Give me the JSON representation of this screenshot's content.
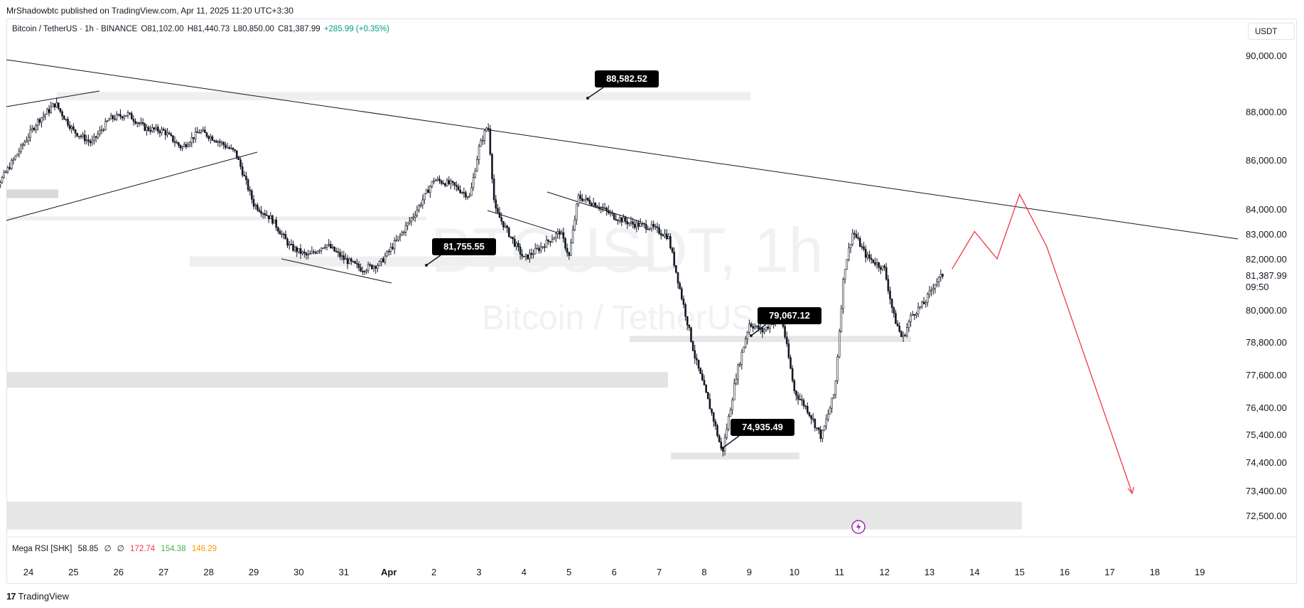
{
  "publisher": "MrShadowbtc published on TradingView.com, Apr 11, 2025 11:20 UTC+3:30",
  "legend": {
    "symbol": "Bitcoin / TetherUS · 1h · BINANCE",
    "open": "O81,102.00",
    "high": "H81,440.73",
    "low": "L80,850.00",
    "close": "C81,387.99",
    "change": "+285.99 (+0.35%)",
    "change_color": "#089981"
  },
  "currency": "USDT",
  "watermark": {
    "line1": "BTCUSDT, 1h",
    "line2": "Bitcoin / TetherUS"
  },
  "indicator": {
    "name": "Mega RSI [SHK]",
    "value1": "58.85",
    "na1": "∅",
    "na2": "∅",
    "value2": "172.74",
    "value3": "154.38",
    "value4": "146.29",
    "color2": "#f23645",
    "color3": "#4caf50",
    "color4": "#ff9800"
  },
  "footer": {
    "logo": "17",
    "brand": "TradingView"
  },
  "chart_data": {
    "type": "candlestick",
    "title": "",
    "symbol": "BTCUSDT",
    "interval": "1h",
    "exchange": "BINANCE",
    "y_ticks": [
      "90,000.00",
      "88,000.00",
      "86,000.00",
      "84,000.00",
      "83,000.00",
      "82,000.00",
      "80,000.00",
      "78,800.00",
      "77,600.00",
      "76,400.00",
      "75,400.00",
      "74,400.00",
      "73,400.00",
      "72,500.00"
    ],
    "y_tick_values": [
      90000,
      88000,
      86000,
      84000,
      83000,
      82000,
      80000,
      78800,
      77600,
      76400,
      75400,
      74400,
      73400,
      72500
    ],
    "x_ticks": [
      "24",
      "25",
      "26",
      "27",
      "28",
      "29",
      "30",
      "31",
      "Apr",
      "2",
      "3",
      "4",
      "5",
      "6",
      "7",
      "8",
      "9",
      "10",
      "11",
      "12",
      "13",
      "14",
      "15",
      "16",
      "17",
      "18",
      "19"
    ],
    "last_price": "81,387.99",
    "countdown": "09:50",
    "approx_path": [
      {
        "day": 23.0,
        "price": 84500
      },
      {
        "day": 23.4,
        "price": 85200
      },
      {
        "day": 23.8,
        "price": 86400
      },
      {
        "day": 24.2,
        "price": 87600
      },
      {
        "day": 24.6,
        "price": 88300
      },
      {
        "day": 25.0,
        "price": 87200
      },
      {
        "day": 25.4,
        "price": 86700
      },
      {
        "day": 25.8,
        "price": 87700
      },
      {
        "day": 26.2,
        "price": 87900
      },
      {
        "day": 26.6,
        "price": 87300
      },
      {
        "day": 27.0,
        "price": 87200
      },
      {
        "day": 27.4,
        "price": 86500
      },
      {
        "day": 27.8,
        "price": 87200
      },
      {
        "day": 28.2,
        "price": 86800
      },
      {
        "day": 28.6,
        "price": 86300
      },
      {
        "day": 29.0,
        "price": 84200
      },
      {
        "day": 29.4,
        "price": 83600
      },
      {
        "day": 29.8,
        "price": 82500
      },
      {
        "day": 30.2,
        "price": 82100
      },
      {
        "day": 30.6,
        "price": 82600
      },
      {
        "day": 31.0,
        "price": 82000
      },
      {
        "day": 31.4,
        "price": 81600
      },
      {
        "day": 31.8,
        "price": 81800
      },
      {
        "day": 32.2,
        "price": 82800
      },
      {
        "day": 32.6,
        "price": 83900
      },
      {
        "day": 33.0,
        "price": 85200
      },
      {
        "day": 33.4,
        "price": 85000
      },
      {
        "day": 33.8,
        "price": 84500
      },
      {
        "day": 34.0,
        "price": 86500
      },
      {
        "day": 34.2,
        "price": 87500
      },
      {
        "day": 34.35,
        "price": 84000
      },
      {
        "day": 34.6,
        "price": 83200
      },
      {
        "day": 35.0,
        "price": 82000
      },
      {
        "day": 35.4,
        "price": 82500
      },
      {
        "day": 35.8,
        "price": 83100
      },
      {
        "day": 36.0,
        "price": 82100
      },
      {
        "day": 36.2,
        "price": 84500
      },
      {
        "day": 36.6,
        "price": 84200
      },
      {
        "day": 37.0,
        "price": 83700
      },
      {
        "day": 37.4,
        "price": 83400
      },
      {
        "day": 37.8,
        "price": 83300
      },
      {
        "day": 38.2,
        "price": 82900
      },
      {
        "day": 38.5,
        "price": 80500
      },
      {
        "day": 38.8,
        "price": 78200
      },
      {
        "day": 39.2,
        "price": 76000
      },
      {
        "day": 39.4,
        "price": 74700
      },
      {
        "day": 39.7,
        "price": 77500
      },
      {
        "day": 40.0,
        "price": 79500
      },
      {
        "day": 40.3,
        "price": 79200
      },
      {
        "day": 40.7,
        "price": 79900
      },
      {
        "day": 41.0,
        "price": 77000
      },
      {
        "day": 41.3,
        "price": 76300
      },
      {
        "day": 41.6,
        "price": 75300
      },
      {
        "day": 41.9,
        "price": 77000
      },
      {
        "day": 42.1,
        "price": 81500
      },
      {
        "day": 42.3,
        "price": 83100
      },
      {
        "day": 42.6,
        "price": 82100
      },
      {
        "day": 43.0,
        "price": 81600
      },
      {
        "day": 43.2,
        "price": 79800
      },
      {
        "day": 43.4,
        "price": 78900
      },
      {
        "day": 43.6,
        "price": 79800
      },
      {
        "day": 43.9,
        "price": 80300
      },
      {
        "day": 44.1,
        "price": 81000
      },
      {
        "day": 44.3,
        "price": 81388
      }
    ],
    "price_labels": [
      "88,582.52",
      "81,755.55",
      "79,067.12",
      "74,935.49"
    ],
    "projection": [
      {
        "day": 44.5,
        "price": 81600
      },
      {
        "day": 45.0,
        "price": 83100
      },
      {
        "day": 45.5,
        "price": 82000
      },
      {
        "day": 46.0,
        "price": 84600
      },
      {
        "day": 46.6,
        "price": 82500
      },
      {
        "day": 48.5,
        "price": 73300
      }
    ]
  }
}
